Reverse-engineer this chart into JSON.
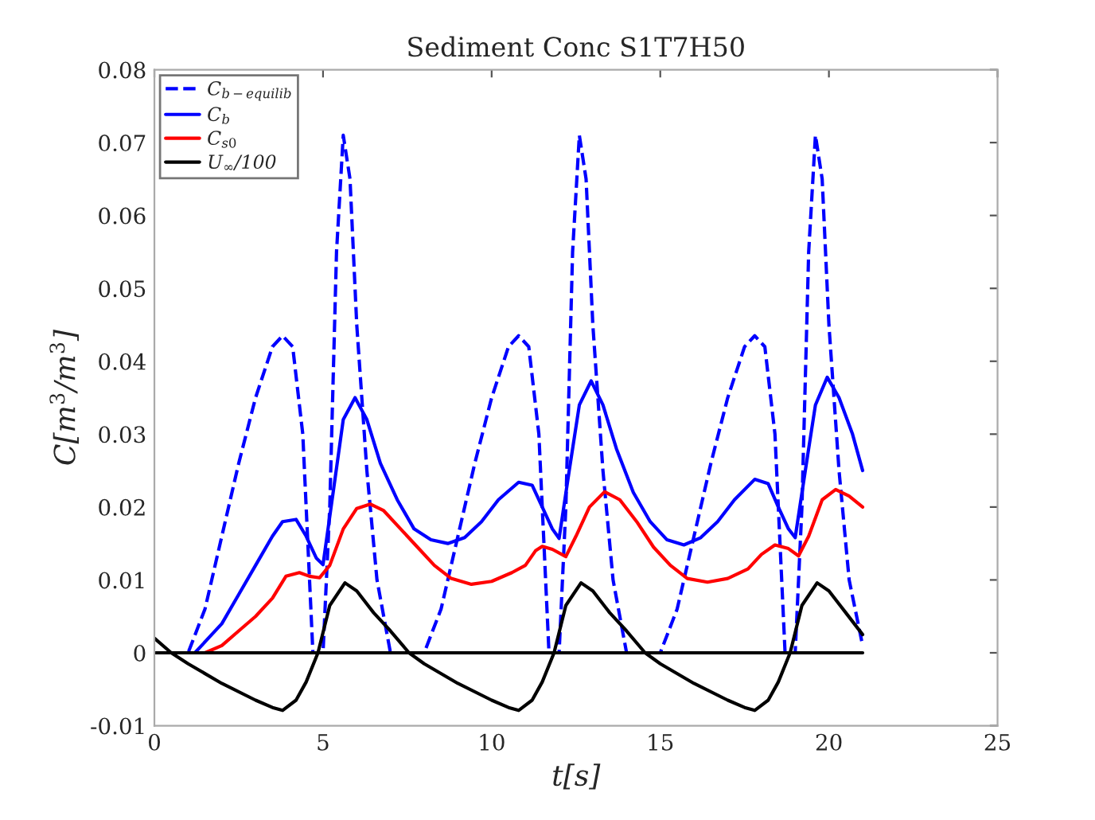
{
  "chart_data": {
    "type": "line",
    "title": "Sediment Conc S1T7H50",
    "xlabel": "t[s]",
    "ylabel": "C[m$^{3}$/m$^{3}$]",
    "xlim": [
      0,
      25
    ],
    "xticks": [
      0,
      5,
      10,
      15,
      20,
      25
    ],
    "ylim": [
      -0.01,
      0.08
    ],
    "yticks": [
      -0.01,
      0,
      0.01,
      0.02,
      0.03,
      0.04,
      0.05,
      0.06,
      0.07,
      0.08
    ],
    "grid": false,
    "legend": "top left",
    "marker": "none",
    "series": [
      {
        "name": "C$_{b−equilib}$",
        "color": "#0000ff",
        "line_style": "dashed",
        "x": [
          0,
          1.0,
          1.5,
          2,
          2.5,
          3,
          3.5,
          3.8,
          4.1,
          4.4,
          4.7,
          5.0,
          5.2,
          5.4,
          5.6,
          5.8,
          6.0,
          6.3,
          6.6,
          7.0,
          8.0,
          8.5,
          9,
          9.5,
          10,
          10.5,
          10.8,
          11.1,
          11.4,
          11.7,
          12.0,
          12.2,
          12.4,
          12.6,
          12.8,
          13.0,
          13.3,
          13.6,
          14.0,
          15.0,
          15.5,
          16,
          16.5,
          17,
          17.5,
          17.8,
          18.1,
          18.4,
          18.7,
          19.0,
          19.2,
          19.4,
          19.6,
          19.8,
          20.0,
          20.3,
          20.6,
          21.0
        ],
        "values": [
          0,
          0,
          0.006,
          0.016,
          0.026,
          0.035,
          0.042,
          0.0435,
          0.042,
          0.03,
          0,
          0,
          0.02,
          0.055,
          0.071,
          0.065,
          0.045,
          0.025,
          0.01,
          0,
          0,
          0.006,
          0.016,
          0.026,
          0.035,
          0.042,
          0.0435,
          0.042,
          0.03,
          0,
          0,
          0.02,
          0.055,
          0.071,
          0.065,
          0.045,
          0.025,
          0.01,
          0,
          0,
          0.006,
          0.016,
          0.026,
          0.035,
          0.042,
          0.0435,
          0.042,
          0.03,
          0,
          0,
          0.02,
          0.055,
          0.071,
          0.065,
          0.045,
          0.025,
          0.01,
          0.001
        ]
      },
      {
        "name": "C$_{b}$",
        "color": "#0000ff",
        "line_style": "solid",
        "x": [
          0,
          1.2,
          1.6,
          2,
          2.5,
          3,
          3.5,
          3.8,
          4.2,
          4.5,
          4.8,
          5.0,
          5.3,
          5.6,
          5.95,
          6.3,
          6.7,
          7.2,
          7.7,
          8.2,
          8.7,
          9.2,
          9.7,
          10.2,
          10.8,
          11.2,
          11.5,
          11.8,
          12.0,
          12.3,
          12.6,
          12.95,
          13.3,
          13.7,
          14.2,
          14.7,
          15.2,
          15.7,
          16.2,
          16.7,
          17.2,
          17.8,
          18.2,
          18.5,
          18.8,
          19.0,
          19.3,
          19.6,
          19.95,
          20.3,
          20.7,
          21.0
        ],
        "values": [
          0,
          0,
          0.002,
          0.004,
          0.008,
          0.012,
          0.016,
          0.018,
          0.0183,
          0.016,
          0.013,
          0.0121,
          0.022,
          0.032,
          0.035,
          0.032,
          0.026,
          0.021,
          0.017,
          0.0155,
          0.015,
          0.0158,
          0.018,
          0.021,
          0.0234,
          0.023,
          0.02,
          0.017,
          0.0157,
          0.025,
          0.034,
          0.0373,
          0.034,
          0.028,
          0.022,
          0.018,
          0.0155,
          0.0148,
          0.0158,
          0.018,
          0.021,
          0.0238,
          0.0232,
          0.02,
          0.017,
          0.0158,
          0.025,
          0.034,
          0.0378,
          0.035,
          0.03,
          0.025
        ]
      },
      {
        "name": "C$_{s0}$",
        "color": "#ff0000",
        "line_style": "solid",
        "x": [
          0,
          1.5,
          2,
          2.5,
          3,
          3.5,
          3.9,
          4.3,
          4.6,
          4.9,
          5.2,
          5.6,
          6.0,
          6.4,
          6.8,
          7.3,
          7.8,
          8.3,
          8.8,
          9.4,
          10.0,
          10.6,
          11.0,
          11.3,
          11.5,
          11.8,
          12.2,
          12.5,
          12.9,
          13.35,
          13.8,
          14.3,
          14.8,
          15.3,
          15.8,
          16.4,
          17.0,
          17.6,
          18.0,
          18.4,
          18.8,
          19.1,
          19.4,
          19.8,
          20.2,
          20.6,
          21.0
        ],
        "values": [
          0,
          0,
          0.001,
          0.003,
          0.005,
          0.0075,
          0.0105,
          0.011,
          0.0105,
          0.0103,
          0.012,
          0.017,
          0.0198,
          0.0204,
          0.0195,
          0.017,
          0.0145,
          0.012,
          0.0102,
          0.0094,
          0.0098,
          0.011,
          0.012,
          0.014,
          0.0146,
          0.0142,
          0.0132,
          0.016,
          0.02,
          0.0221,
          0.021,
          0.018,
          0.0145,
          0.012,
          0.0102,
          0.0097,
          0.0102,
          0.0115,
          0.0135,
          0.0148,
          0.0143,
          0.0133,
          0.016,
          0.021,
          0.0224,
          0.0215,
          0.02
        ]
      },
      {
        "name": "U$_{∞}$/100",
        "color": "#000000",
        "line_style": "solid",
        "x": [
          0,
          0.5,
          1,
          2,
          3,
          3.5,
          3.8,
          4.2,
          4.5,
          4.85,
          5.2,
          5.65,
          6.0,
          6.5,
          7.0,
          7.55,
          8.0,
          9,
          10,
          10.5,
          10.8,
          11.2,
          11.5,
          11.85,
          12.2,
          12.65,
          13.0,
          13.5,
          14,
          14.55,
          15,
          16,
          17,
          17.5,
          17.8,
          18.2,
          18.5,
          18.85,
          19.2,
          19.65,
          20.0,
          20.5,
          21
        ],
        "values": [
          0.002,
          0,
          -0.0015,
          -0.0042,
          -0.0065,
          -0.0075,
          -0.0079,
          -0.0065,
          -0.004,
          0,
          0.0065,
          0.0096,
          0.0085,
          0.0055,
          0.003,
          0,
          -0.0015,
          -0.0042,
          -0.0065,
          -0.0075,
          -0.0079,
          -0.0065,
          -0.004,
          0,
          0.0065,
          0.0096,
          0.0085,
          0.0055,
          0.003,
          0,
          -0.0015,
          -0.0042,
          -0.0065,
          -0.0075,
          -0.0079,
          -0.0065,
          -0.004,
          0,
          0.0065,
          0.0096,
          0.0085,
          0.0055,
          0.0025
        ]
      },
      {
        "color": "#000000",
        "line_style": "solid",
        "x": [
          0,
          21
        ],
        "values": [
          0,
          0
        ]
      }
    ]
  }
}
